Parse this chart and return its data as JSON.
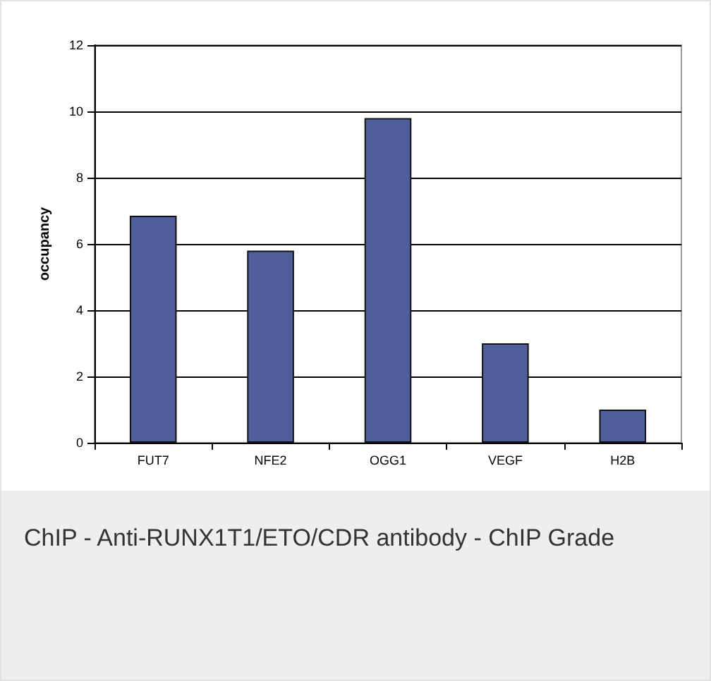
{
  "chart_data": {
    "type": "bar",
    "ylabel": "occupancy",
    "categories": [
      "FUT7",
      "NFE2",
      "OGG1",
      "VEGF",
      "H2B"
    ],
    "values": [
      6.85,
      5.8,
      9.8,
      3.0,
      1.0
    ],
    "color": "#4f5f9c",
    "ylim": [
      0,
      12
    ],
    "yticks": [
      0,
      2,
      4,
      6,
      8,
      10,
      12
    ],
    "grid": "y",
    "annotations": [
      "ChIP - Anti-RUNX1T1/ETO/CDR antibody - ChIP Grade"
    ]
  }
}
